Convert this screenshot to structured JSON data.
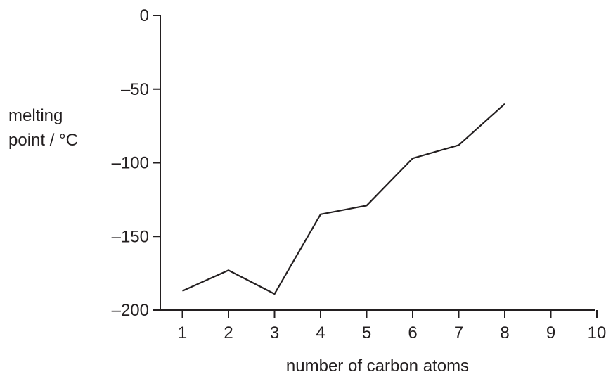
{
  "chart_data": {
    "type": "line",
    "title": "",
    "xlabel": "number of carbon atoms",
    "ylabel_lines": [
      "melting",
      "point / °C"
    ],
    "xlim": [
      0.5,
      10
    ],
    "ylim": [
      -200,
      0
    ],
    "xticks": [
      1,
      2,
      3,
      4,
      5,
      6,
      7,
      8,
      9,
      10
    ],
    "yticks": [
      0,
      -50,
      -100,
      -150,
      -200
    ],
    "ytick_labels": [
      "0",
      "–50",
      "–100",
      "–150",
      "–200"
    ],
    "grid": false,
    "series": [
      {
        "x": [
          1,
          2,
          3,
          4,
          5,
          6,
          7,
          8
        ],
        "y": [
          -187,
          -173,
          -189,
          -135,
          -129,
          -97,
          -88,
          -60
        ]
      }
    ],
    "colors": {
      "line": "#231f20",
      "axis": "#231f20"
    }
  }
}
